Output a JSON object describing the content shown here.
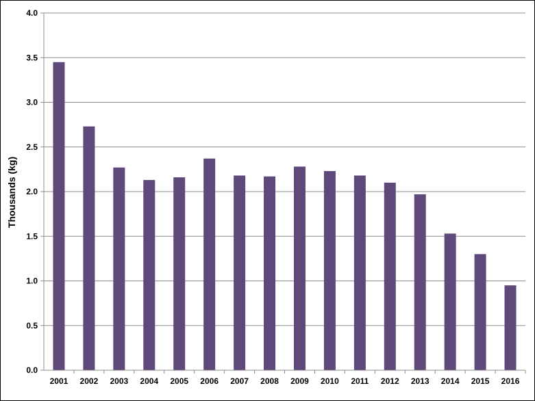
{
  "chart_data": {
    "type": "bar",
    "title": "",
    "xlabel": "",
    "ylabel": "Thousands (kg)",
    "ylim": [
      0,
      4.0
    ],
    "yticks": [
      "0.0",
      "0.5",
      "1.0",
      "1.5",
      "2.0",
      "2.5",
      "3.0",
      "3.5",
      "4.0"
    ],
    "grid": true,
    "legend": "none",
    "bar_color": "#5f497a",
    "categories": [
      "2001",
      "2002",
      "2003",
      "2004",
      "2005",
      "2006",
      "2007",
      "2008",
      "2009",
      "2010",
      "2011",
      "2012",
      "2013",
      "2014",
      "2015",
      "2016"
    ],
    "values": [
      3.45,
      2.73,
      2.27,
      2.13,
      2.16,
      2.37,
      2.18,
      2.17,
      2.28,
      2.23,
      2.18,
      2.1,
      1.97,
      1.53,
      1.3,
      0.95
    ]
  }
}
